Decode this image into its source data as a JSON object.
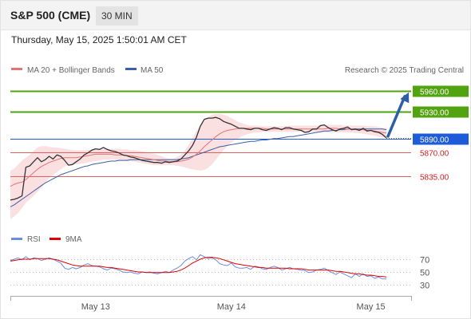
{
  "header": {
    "title": "S&P 500 (CME)",
    "timeframe": "30 MIN",
    "timestamp": "Thursday, May 15, 2025 1:50:01 AM CET"
  },
  "legend": {
    "bollinger": "MA 20 + Bollinger Bands",
    "ma50": "MA 50",
    "credit": "Research © 2025 Trading Central",
    "rsi": "RSI",
    "rsi_ma": "9MA"
  },
  "colors": {
    "price": "#333333",
    "ma20": "#e57373",
    "bands_fill": "#f9d5d8",
    "ma50": "#3b5fa8",
    "resistance": "#52a310",
    "pivot": "#1e5bd8",
    "support": "#e06060",
    "support_text": "#d01c1c",
    "rsi": "#6b8ee0",
    "rsi_ma": "#e00000",
    "arrow": "#2e5fa6"
  },
  "chart_data": [
    {
      "type": "line",
      "x_labels": [
        "May 13",
        "May 14",
        "May 15"
      ],
      "ylim": [
        5760,
        5975
      ],
      "levels": [
        {
          "label": "5960.00",
          "value": 5960,
          "kind": "resistance"
        },
        {
          "label": "5930.00",
          "value": 5930,
          "kind": "resistance"
        },
        {
          "label": "5890.00",
          "value": 5890,
          "kind": "pivot"
        },
        {
          "label": "5870.00",
          "value": 5870,
          "kind": "support"
        },
        {
          "label": "5835.00",
          "value": 5835,
          "kind": "support"
        }
      ],
      "current_price": 5890,
      "price": [
        5800,
        5801,
        5803,
        5806,
        5848,
        5850,
        5856,
        5862,
        5856,
        5859,
        5864,
        5860,
        5866,
        5864,
        5858,
        5851,
        5852,
        5856,
        5860,
        5866,
        5869,
        5873,
        5875,
        5874,
        5877,
        5874,
        5872,
        5871,
        5869,
        5866,
        5865,
        5863,
        5862,
        5860,
        5858,
        5857,
        5856,
        5855,
        5855,
        5854,
        5856,
        5855,
        5856,
        5857,
        5860,
        5866,
        5872,
        5880,
        5892,
        5908,
        5918,
        5920,
        5920,
        5921,
        5919,
        5915,
        5913,
        5911,
        5908,
        5905,
        5905,
        5904,
        5903,
        5905,
        5905,
        5903,
        5902,
        5904,
        5906,
        5905,
        5903,
        5906,
        5906,
        5904,
        5903,
        5902,
        5899,
        5900,
        5904,
        5904,
        5909,
        5910,
        5906,
        5903,
        5901,
        5904,
        5905,
        5907,
        5903,
        5904,
        5902,
        5905,
        5901,
        5902,
        5900,
        5899,
        5896,
        5891
      ],
      "ma20": [
        5820,
        5823,
        5825,
        5826,
        5830,
        5835,
        5840,
        5845,
        5849,
        5852,
        5855,
        5857,
        5859,
        5861,
        5862,
        5862,
        5862,
        5862,
        5863,
        5864,
        5865,
        5866,
        5867,
        5867,
        5867,
        5867,
        5867,
        5866,
        5866,
        5866,
        5865,
        5865,
        5864,
        5863,
        5862,
        5861,
        5860,
        5859,
        5858,
        5857,
        5857,
        5856,
        5856,
        5856,
        5857,
        5858,
        5860,
        5863,
        5867,
        5872,
        5878,
        5883,
        5888,
        5893,
        5897,
        5900,
        5902,
        5903,
        5904,
        5905,
        5905,
        5905,
        5905,
        5905,
        5905,
        5905,
        5904,
        5904,
        5904,
        5904,
        5904,
        5904,
        5904,
        5904,
        5904,
        5904,
        5904,
        5904,
        5904,
        5904,
        5904,
        5904,
        5905,
        5905,
        5905,
        5904,
        5904,
        5904,
        5904,
        5903,
        5903,
        5903,
        5902,
        5902,
        5901,
        5900,
        5899,
        5898
      ],
      "ma50": [
        5790,
        5793,
        5797,
        5801,
        5805,
        5809,
        5813,
        5817,
        5821,
        5825,
        5828,
        5831,
        5834,
        5837,
        5839,
        5841,
        5843,
        5845,
        5847,
        5849,
        5850,
        5852,
        5853,
        5854,
        5855,
        5856,
        5857,
        5857,
        5858,
        5858,
        5858,
        5859,
        5859,
        5859,
        5859,
        5859,
        5859,
        5859,
        5859,
        5859,
        5859,
        5859,
        5859,
        5859,
        5860,
        5861,
        5862,
        5864,
        5866,
        5868,
        5870,
        5872,
        5874,
        5876,
        5878,
        5879,
        5880,
        5881,
        5882,
        5883,
        5884,
        5885,
        5886,
        5886,
        5887,
        5888,
        5888,
        5889,
        5890,
        5890,
        5891,
        5892,
        5893,
        5893,
        5894,
        5895,
        5896,
        5897,
        5898,
        5899,
        5900,
        5901,
        5901,
        5902,
        5902,
        5903,
        5903,
        5904,
        5904,
        5904,
        5904,
        5904,
        5904,
        5904,
        5904,
        5904,
        5904,
        5903
      ],
      "band_upper": [
        5843,
        5846,
        5852,
        5858,
        5862,
        5866,
        5872,
        5877,
        5879,
        5879,
        5878,
        5877,
        5877,
        5876,
        5875,
        5874,
        5873,
        5873,
        5873,
        5873,
        5873,
        5874,
        5874,
        5875,
        5875,
        5875,
        5875,
        5875,
        5875,
        5874,
        5874,
        5873,
        5873,
        5872,
        5871,
        5870,
        5869,
        5868,
        5866,
        5864,
        5862,
        5861,
        5861,
        5863,
        5866,
        5872,
        5881,
        5891,
        5901,
        5909,
        5916,
        5921,
        5925,
        5926,
        5926,
        5925,
        5923,
        5920,
        5917,
        5914,
        5912,
        5910,
        5909,
        5909,
        5909,
        5908,
        5908,
        5908,
        5908,
        5908,
        5908,
        5908,
        5909,
        5909,
        5909,
        5909,
        5909,
        5909,
        5909,
        5909,
        5910,
        5910,
        5910,
        5910,
        5910,
        5910,
        5909,
        5909,
        5909,
        5909,
        5909,
        5909,
        5908,
        5908,
        5908,
        5907,
        5906,
        5905
      ],
      "band_lower": [
        5772,
        5776,
        5781,
        5788,
        5796,
        5801,
        5806,
        5812,
        5818,
        5825,
        5832,
        5837,
        5841,
        5845,
        5849,
        5851,
        5852,
        5852,
        5853,
        5854,
        5855,
        5856,
        5857,
        5858,
        5859,
        5859,
        5859,
        5859,
        5858,
        5858,
        5857,
        5857,
        5856,
        5855,
        5854,
        5853,
        5852,
        5851,
        5851,
        5851,
        5851,
        5851,
        5851,
        5850,
        5849,
        5848,
        5846,
        5845,
        5844,
        5843,
        5844,
        5847,
        5852,
        5859,
        5866,
        5873,
        5879,
        5884,
        5888,
        5891,
        5894,
        5896,
        5898,
        5899,
        5899,
        5900,
        5900,
        5900,
        5900,
        5900,
        5900,
        5900,
        5900,
        5900,
        5900,
        5900,
        5900,
        5900,
        5900,
        5900,
        5899,
        5899,
        5899,
        5899,
        5899,
        5899,
        5899,
        5899,
        5899,
        5898,
        5898,
        5897,
        5896,
        5895,
        5894,
        5893,
        5892,
        5891
      ]
    },
    {
      "type": "line",
      "x_labels": [
        "May 13",
        "May 14",
        "May 15"
      ],
      "y_ticks": [
        70,
        50,
        30
      ],
      "ylim": [
        20,
        85
      ],
      "rsi": [
        68,
        70,
        72,
        69,
        74,
        69,
        72,
        71,
        68,
        70,
        72,
        70,
        67,
        64,
        56,
        54,
        57,
        55,
        57,
        61,
        63,
        60,
        59,
        58,
        55,
        53,
        56,
        55,
        53,
        50,
        49,
        50,
        48,
        47,
        50,
        49,
        50,
        48,
        47,
        49,
        51,
        49,
        53,
        56,
        60,
        67,
        71,
        74,
        69,
        77,
        74,
        71,
        72,
        69,
        63,
        61,
        60,
        64,
        58,
        56,
        56,
        57,
        54,
        59,
        58,
        55,
        54,
        57,
        59,
        57,
        53,
        55,
        57,
        55,
        54,
        53,
        52,
        49,
        50,
        53,
        54,
        56,
        52,
        49,
        46,
        50,
        47,
        44,
        41,
        47,
        43,
        47,
        43,
        44,
        40,
        42,
        39,
        39
      ],
      "rsi_ma": [
        67,
        68,
        69,
        70,
        70,
        70,
        71,
        71,
        71,
        71,
        71,
        70,
        69,
        67,
        65,
        63,
        61,
        60,
        59,
        59,
        59,
        59,
        59,
        59,
        58,
        57,
        57,
        56,
        55,
        54,
        53,
        52,
        51,
        50,
        50,
        49,
        49,
        49,
        49,
        49,
        49,
        49,
        50,
        51,
        53,
        56,
        60,
        64,
        67,
        70,
        72,
        73,
        73,
        72,
        71,
        69,
        67,
        65,
        63,
        62,
        61,
        60,
        59,
        58,
        57,
        57,
        56,
        56,
        56,
        56,
        56,
        56,
        55,
        55,
        55,
        55,
        54,
        53,
        53,
        53,
        53,
        53,
        53,
        52,
        51,
        51,
        50,
        49,
        48,
        47,
        47,
        46,
        45,
        45,
        44,
        43,
        43,
        42
      ]
    }
  ]
}
